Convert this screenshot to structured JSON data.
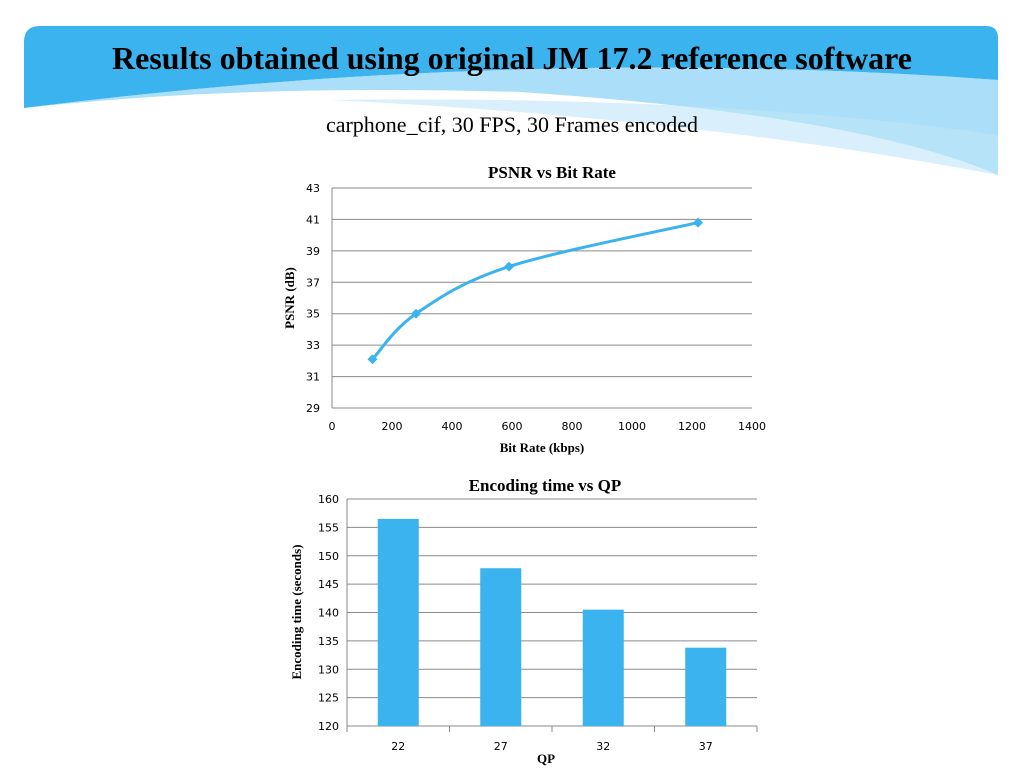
{
  "slide": {
    "title": "Results obtained using original JM 17.2 reference software",
    "subtitle": "carphone_cif, 30 FPS, 30 Frames encoded"
  },
  "colors": {
    "accent": "#3bb3ee",
    "banner_light": "#8fd3f6",
    "gridline": "#8a8a8a"
  },
  "chart_data": [
    {
      "type": "line",
      "title": "PSNR vs Bit Rate",
      "xlabel": "Bit Rate (kbps)",
      "ylabel": "PSNR (dB)",
      "xlim": [
        0,
        1400
      ],
      "ylim": [
        29,
        43
      ],
      "xticks": [
        0,
        200,
        400,
        600,
        800,
        1000,
        1200,
        1400
      ],
      "yticks": [
        29,
        31,
        33,
        35,
        37,
        39,
        41,
        43
      ],
      "grid": true,
      "marker": "diamond",
      "series": [
        {
          "x": [
            135,
            280,
            590,
            1220
          ],
          "y": [
            32.1,
            35.0,
            38.0,
            40.8
          ]
        }
      ]
    },
    {
      "type": "bar",
      "title": "Encoding time vs QP",
      "xlabel": "QP",
      "ylabel": "Encoding time (seconds)",
      "ylim": [
        120,
        160
      ],
      "yticks": [
        120,
        125,
        130,
        135,
        140,
        145,
        150,
        155,
        160
      ],
      "grid": true,
      "categories": [
        "22",
        "27",
        "32",
        "37"
      ],
      "values": [
        156.5,
        147.8,
        140.5,
        133.8
      ]
    }
  ]
}
